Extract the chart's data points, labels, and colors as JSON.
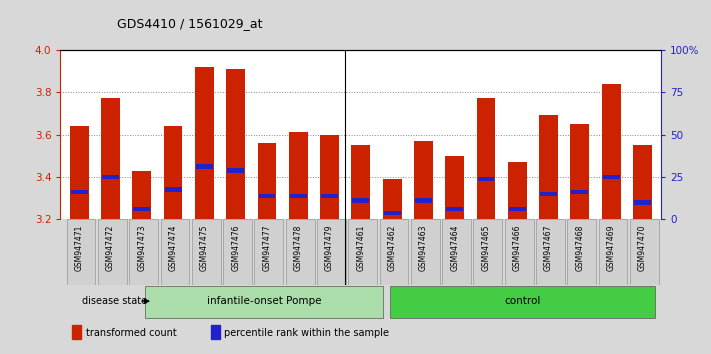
{
  "title": "GDS4410 / 1561029_at",
  "samples": [
    "GSM947471",
    "GSM947472",
    "GSM947473",
    "GSM947474",
    "GSM947475",
    "GSM947476",
    "GSM947477",
    "GSM947478",
    "GSM947479",
    "GSM947461",
    "GSM947462",
    "GSM947463",
    "GSM947464",
    "GSM947465",
    "GSM947466",
    "GSM947467",
    "GSM947468",
    "GSM947469",
    "GSM947470"
  ],
  "bar_values": [
    3.64,
    3.77,
    3.43,
    3.64,
    3.92,
    3.91,
    3.56,
    3.61,
    3.6,
    3.55,
    3.39,
    3.57,
    3.5,
    3.77,
    3.47,
    3.69,
    3.65,
    3.84,
    3.55
  ],
  "percentile_values": [
    3.33,
    3.4,
    3.25,
    3.34,
    3.45,
    3.43,
    3.31,
    3.31,
    3.31,
    3.29,
    3.23,
    3.29,
    3.25,
    3.39,
    3.25,
    3.32,
    3.33,
    3.4,
    3.28
  ],
  "ylim_left": [
    3.2,
    4.0
  ],
  "ylim_right": [
    0,
    100
  ],
  "right_ticks": [
    0,
    25,
    50,
    75,
    100
  ],
  "right_tick_labels": [
    "0",
    "25",
    "50",
    "75",
    "100%"
  ],
  "left_ticks": [
    3.2,
    3.4,
    3.6,
    3.8,
    4.0
  ],
  "groups": [
    {
      "label": "infantile-onset Pompe",
      "start": 0,
      "end": 9,
      "color": "#aaddaa"
    },
    {
      "label": "control",
      "start": 9,
      "end": 19,
      "color": "#44cc44"
    }
  ],
  "group_sep": 9,
  "bar_color": "#cc2200",
  "marker_color": "#2222cc",
  "background_color": "#d8d8d8",
  "plot_bg_color": "#ffffff",
  "tick_bg_color": "#d0d0d0",
  "dotted_line_color": "#888888",
  "label_color_left": "#cc2200",
  "label_color_right": "#2222cc",
  "bar_width": 0.6,
  "legend_items": [
    {
      "label": "transformed count",
      "color": "#cc2200"
    },
    {
      "label": "percentile rank within the sample",
      "color": "#2222cc"
    }
  ]
}
